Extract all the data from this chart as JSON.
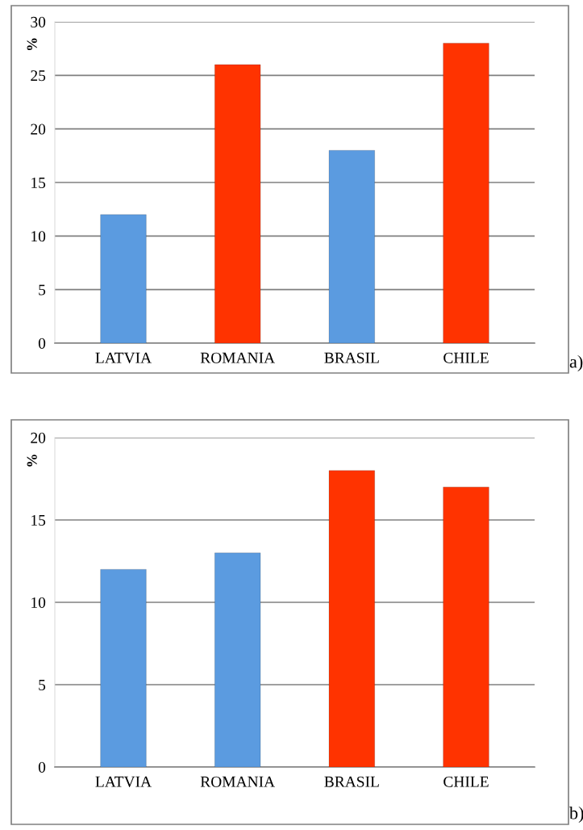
{
  "chart_data": [
    {
      "type": "bar",
      "ylabel": "%",
      "categories": [
        "LATVIA",
        "ROMANIA",
        "BRASIL",
        "CHILE"
      ],
      "values": [
        12,
        26,
        18,
        28
      ],
      "colors": [
        "#5b9be0",
        "#ff3300",
        "#5b9be0",
        "#ff3300"
      ],
      "ylim": [
        0,
        30
      ],
      "yticks": [
        0,
        5,
        10,
        15,
        20,
        25,
        30
      ],
      "grid": "y",
      "annotations": [
        "a)"
      ]
    },
    {
      "type": "bar",
      "ylabel": "%",
      "categories": [
        "LATVIA",
        "ROMANIA",
        "BRASIL",
        "CHILE"
      ],
      "values": [
        12,
        13,
        18,
        17
      ],
      "colors": [
        "#5b9be0",
        "#5b9be0",
        "#ff3300",
        "#ff3300"
      ],
      "ylim": [
        0,
        20
      ],
      "yticks": [
        0,
        5,
        10,
        15,
        20
      ],
      "grid": "y",
      "annotations": [
        "b)"
      ]
    }
  ]
}
